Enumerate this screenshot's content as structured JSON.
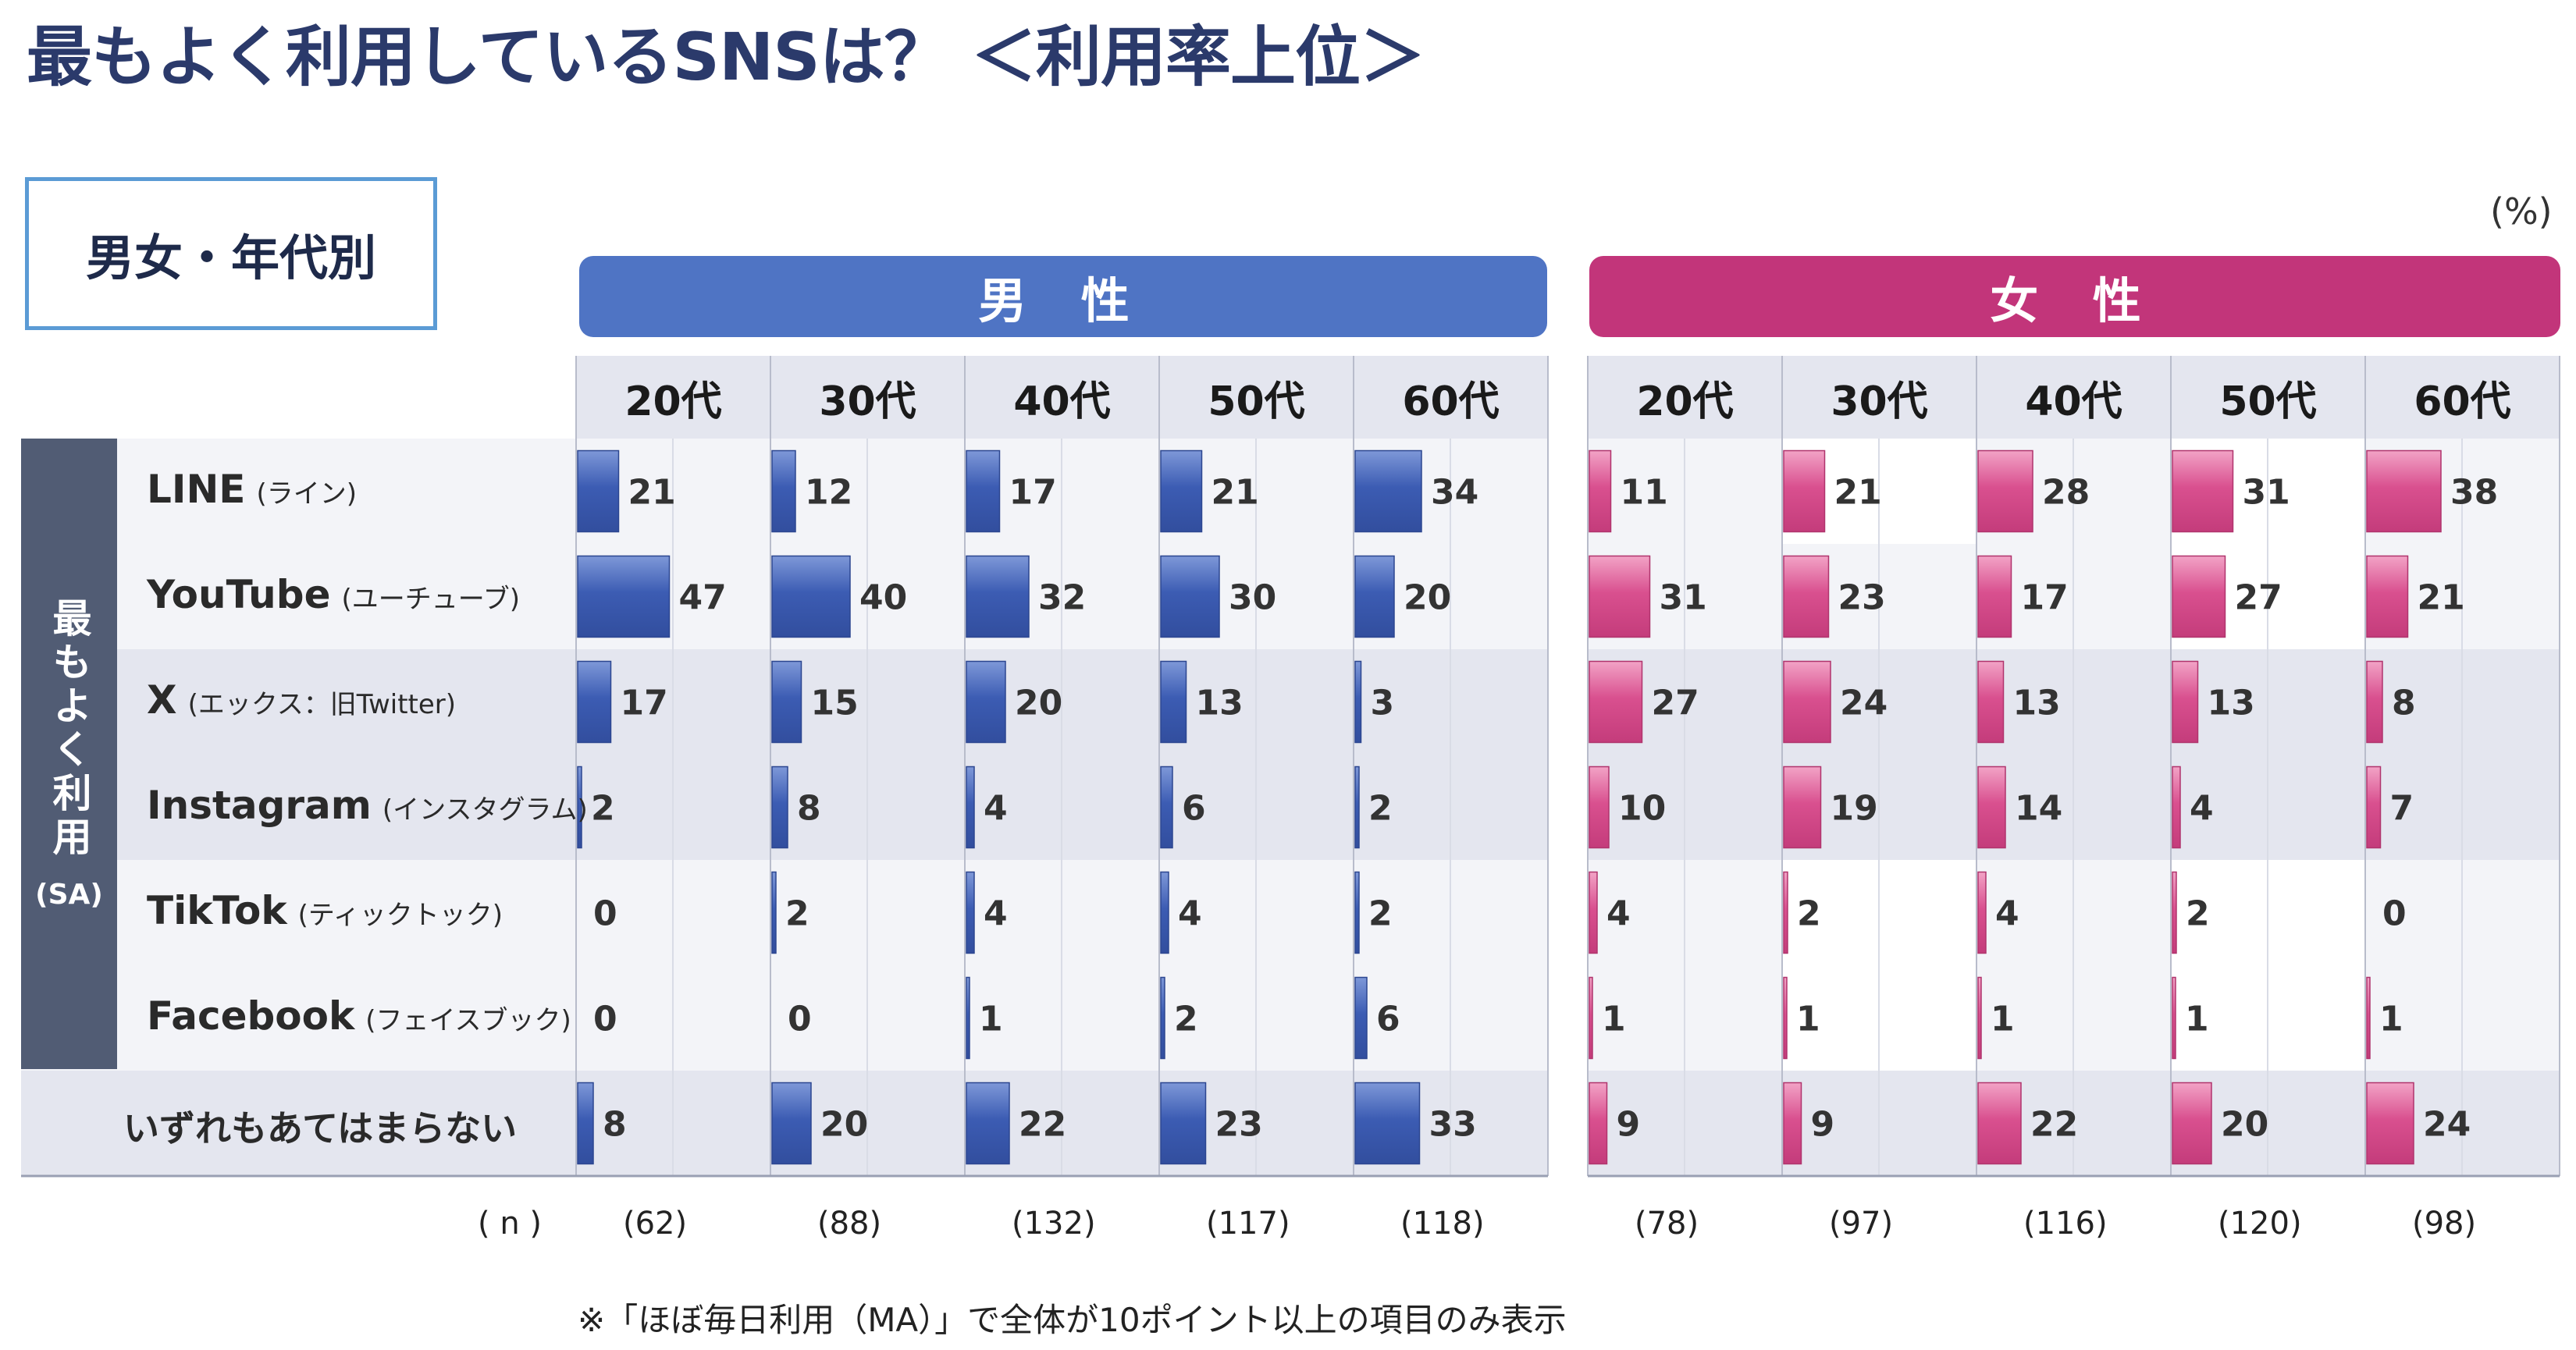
{
  "title": "最もよく利用しているSNSは？ ＜利用率上位＞",
  "subtitle": "男女・年代別",
  "unit": "(%)",
  "side_label": "最もよく利用",
  "side_sa": "(SA)",
  "n_label": "( n )",
  "footnote": "※「ほぼ毎日利用（MA）」で全体が10ポイント以上の項目のみ表示",
  "colors": {
    "male": "#3f5fb5",
    "female": "#d94a8c",
    "male_header": "#4f74c4",
    "female_header": "#c2357a"
  },
  "chart_data": {
    "type": "bar",
    "groups": [
      {
        "name": "男 性",
        "ages": [
          "20代",
          "30代",
          "40代",
          "50代",
          "60代"
        ],
        "n": [
          "(62)",
          "(88)",
          "(132)",
          "(117)",
          "(118)"
        ]
      },
      {
        "name": "女 性",
        "ages": [
          "20代",
          "30代",
          "40代",
          "50代",
          "60代"
        ],
        "n": [
          "(78)",
          "(97)",
          "(116)",
          "(120)",
          "(98)"
        ]
      }
    ],
    "categories": [
      {
        "en": "LINE",
        "jp": "(ライン)"
      },
      {
        "en": "YouTube",
        "jp": "(ユーチューブ)"
      },
      {
        "en": "X",
        "jp": "(エックス：旧Twitter)"
      },
      {
        "en": "Instagram",
        "jp": "(インスタグラム)"
      },
      {
        "en": "TikTok",
        "jp": "(ティックトック)"
      },
      {
        "en": "Facebook",
        "jp": "(フェイスブック)"
      },
      {
        "en": "いずれもあてはまらない",
        "jp": ""
      }
    ],
    "series": [
      {
        "name": "男性20代",
        "values": [
          21,
          47,
          17,
          2,
          0,
          0,
          8
        ]
      },
      {
        "name": "男性30代",
        "values": [
          12,
          40,
          15,
          8,
          2,
          0,
          20
        ]
      },
      {
        "name": "男性40代",
        "values": [
          17,
          32,
          20,
          4,
          4,
          1,
          22
        ]
      },
      {
        "name": "男性50代",
        "values": [
          21,
          30,
          13,
          6,
          4,
          2,
          23
        ]
      },
      {
        "name": "男性60代",
        "values": [
          34,
          20,
          3,
          2,
          2,
          6,
          33
        ]
      },
      {
        "name": "女性20代",
        "values": [
          11,
          31,
          27,
          10,
          4,
          1,
          9
        ]
      },
      {
        "name": "女性30代",
        "values": [
          21,
          23,
          24,
          19,
          2,
          1,
          9
        ]
      },
      {
        "name": "女性40代",
        "values": [
          28,
          17,
          13,
          14,
          4,
          1,
          22
        ]
      },
      {
        "name": "女性50代",
        "values": [
          31,
          27,
          13,
          4,
          2,
          1,
          20
        ]
      },
      {
        "name": "女性60代",
        "values": [
          38,
          21,
          8,
          7,
          0,
          1,
          24
        ]
      }
    ],
    "ylim": [
      0,
      100
    ]
  }
}
